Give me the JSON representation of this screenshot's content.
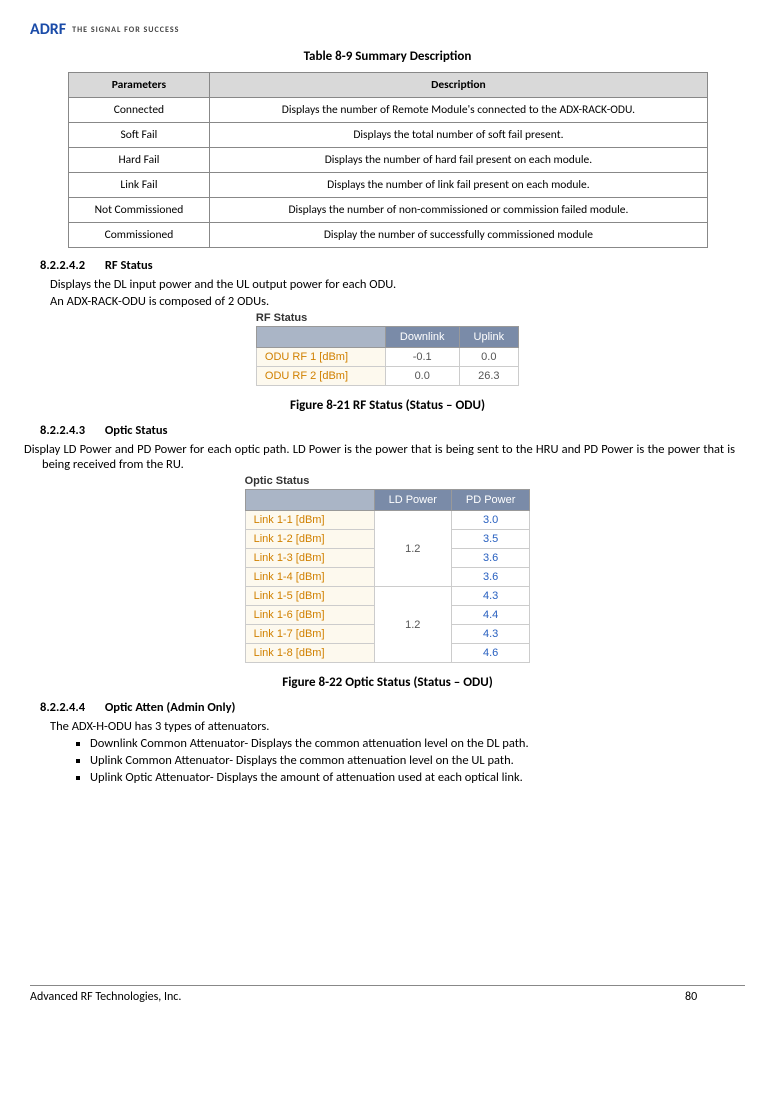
{
  "logo": {
    "brand": "ADRF",
    "tagline": "THE SIGNAL FOR SUCCESS"
  },
  "table_caption": "Table 8-9      Summary Description",
  "summary_table": {
    "headers": [
      "Parameters",
      "Description"
    ],
    "rows": [
      [
        "Connected",
        "Displays the number of Remote Module's connected to the ADX-RACK-ODU."
      ],
      [
        "Soft Fail",
        "Displays the total number of soft fail present."
      ],
      [
        "Hard Fail",
        "Displays the number of hard fail present on each module."
      ],
      [
        "Link Fail",
        "Displays the number of link fail present on each module."
      ],
      [
        "Not Commissioned",
        "Displays the number of non-commissioned or commission failed module."
      ],
      [
        "Commissioned",
        "Display the number of successfully commissioned module"
      ]
    ]
  },
  "sec_rf": {
    "num": "8.2.2.4.2",
    "title": "RF Status",
    "p1": "Displays the DL input power and the UL output power for each ODU.",
    "p2": "An ADX-RACK-ODU is composed of 2 ODUs.",
    "panel_title": "RF Status",
    "headers": [
      "",
      "Downlink",
      "Uplink"
    ],
    "rows": [
      {
        "label": "ODU RF 1 [dBm]",
        "dl": "-0.1",
        "ul": "0.0"
      },
      {
        "label": "ODU RF 2 [dBm]",
        "dl": "0.0",
        "ul": "26.3"
      }
    ],
    "caption": "Figure 8-21    RF Status (Status – ODU)"
  },
  "sec_optic": {
    "num": "8.2.2.4.3",
    "title": "Optic Status",
    "p1": "Display LD Power and PD Power for each optic path.  LD Power is the power that is being sent to the HRU and PD Power is the power that is being received from the RU.",
    "panel_title": "Optic Status",
    "headers": [
      "",
      "LD Power",
      "PD Power"
    ],
    "groups": [
      {
        "ld": "1.2",
        "links": [
          {
            "label": "Link 1-1 [dBm]",
            "pd": "3.0"
          },
          {
            "label": "Link 1-2 [dBm]",
            "pd": "3.5"
          },
          {
            "label": "Link 1-3 [dBm]",
            "pd": "3.6"
          },
          {
            "label": "Link 1-4 [dBm]",
            "pd": "3.6"
          }
        ]
      },
      {
        "ld": "1.2",
        "links": [
          {
            "label": "Link 1-5 [dBm]",
            "pd": "4.3"
          },
          {
            "label": "Link 1-6 [dBm]",
            "pd": "4.4"
          },
          {
            "label": "Link 1-7 [dBm]",
            "pd": "4.3"
          },
          {
            "label": "Link 1-8 [dBm]",
            "pd": "4.6"
          }
        ]
      }
    ],
    "caption": "Figure 8-22    Optic Status (Status – ODU)"
  },
  "sec_atten": {
    "num": "8.2.2.4.4",
    "title": "Optic Atten (Admin Only)",
    "p1": "The ADX-H-ODU has 3 types of attenuators.",
    "bullets": [
      "Downlink Common Attenuator- Displays the common attenuation level on the DL path.",
      "Uplink Common Attenuator- Displays the common attenuation level on the UL path.",
      "Uplink Optic Attenuator- Displays the amount of attenuation used at each optical link."
    ]
  },
  "footer": {
    "company": "Advanced RF Technologies, Inc.",
    "page": "80"
  }
}
